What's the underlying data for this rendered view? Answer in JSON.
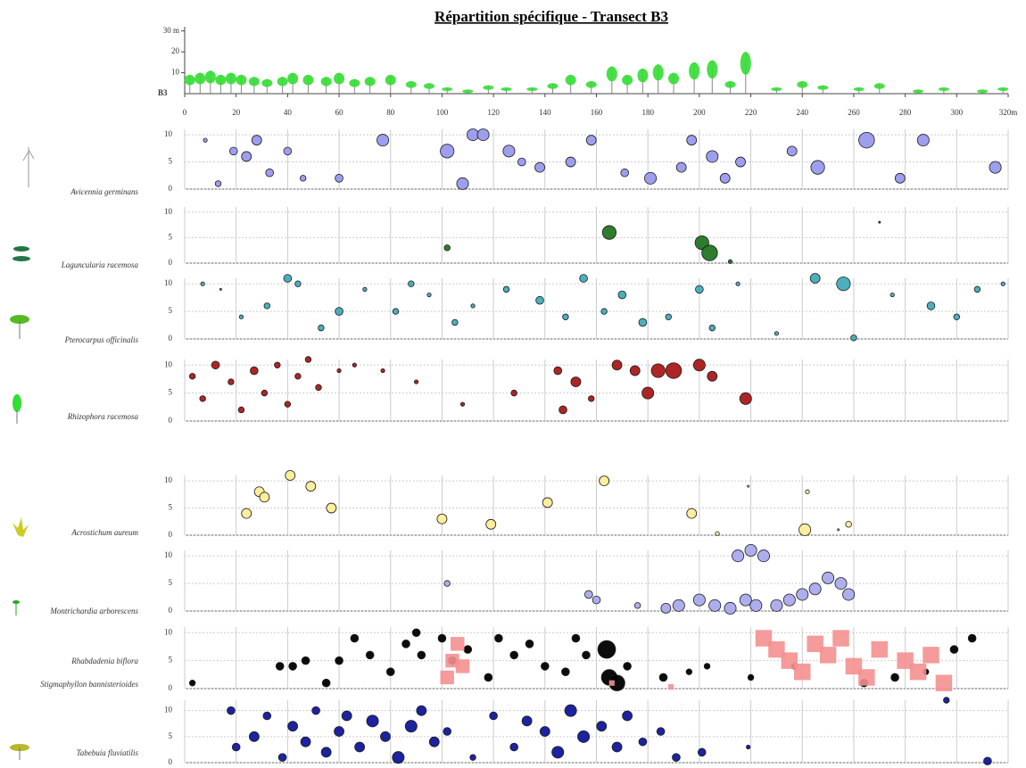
{
  "chart_data": [
    {
      "type": "profile",
      "title": "Répartition spécifique - Transect B3",
      "transect_label": "B3",
      "color": "#33dd33",
      "xlim": [
        0,
        320
      ],
      "xticks": [
        0,
        20,
        40,
        60,
        80,
        100,
        120,
        140,
        160,
        180,
        200,
        220,
        240,
        260,
        280,
        300,
        {
          "value": 320,
          "label": "320m"
        }
      ],
      "ylim": [
        0,
        32
      ],
      "yticks": [
        10,
        20,
        {
          "value": 30,
          "label": "30 m"
        }
      ],
      "x": [
        2,
        6,
        10,
        14,
        18,
        22,
        27,
        32,
        38,
        42,
        48,
        55,
        60,
        66,
        72,
        80,
        88,
        95,
        102,
        110,
        118,
        125,
        135,
        143,
        150,
        158,
        166,
        172,
        178,
        184,
        190,
        198,
        205,
        212,
        218,
        230,
        240,
        248,
        262,
        270,
        285,
        295,
        310,
        318
      ],
      "values": [
        9,
        10,
        11,
        9,
        10,
        9,
        8,
        7,
        8,
        10,
        9,
        8,
        10,
        7,
        8,
        9,
        6,
        5,
        3,
        2,
        4,
        3,
        3,
        5,
        9,
        6,
        13,
        9,
        12,
        14,
        10,
        15,
        16,
        6,
        20,
        3,
        6,
        4,
        3,
        5,
        2,
        3,
        2,
        3
      ]
    },
    {
      "type": "scatter",
      "xlim": [
        0,
        320
      ],
      "ylim": [
        0,
        11
      ],
      "yticks": [
        0,
        5,
        10
      ],
      "series": [
        {
          "name": "Avicennia germinans",
          "color": "#9999ee",
          "x": [
            8,
            13,
            19,
            24,
            28,
            33,
            40,
            46,
            60,
            77,
            102,
            108,
            112,
            116,
            126,
            131,
            138,
            150,
            158,
            171,
            181,
            193,
            197,
            205,
            210,
            216,
            236,
            246,
            265,
            278,
            287,
            315
          ],
          "values": [
            9,
            1,
            7,
            6,
            9,
            3,
            7,
            2,
            2,
            9,
            7,
            1,
            10,
            10,
            7,
            5,
            4,
            5,
            9,
            3,
            2,
            4,
            9,
            6,
            2,
            5,
            7,
            4,
            9,
            2,
            9,
            4
          ],
          "sizes": [
            2,
            3,
            4,
            5,
            5,
            4,
            4,
            3,
            4,
            6,
            7,
            6,
            6,
            6,
            6,
            4,
            5,
            5,
            5,
            4,
            6,
            5,
            5,
            6,
            5,
            5,
            5,
            7,
            8,
            5,
            6,
            6
          ]
        }
      ]
    },
    {
      "type": "scatter",
      "xlim": [
        0,
        320
      ],
      "ylim": [
        0,
        11
      ],
      "yticks": [
        0,
        5,
        10
      ],
      "series": [
        {
          "name": "Laguncularia racemosa",
          "color": "#227722",
          "x": [
            102,
            165,
            201,
            204,
            212,
            270
          ],
          "values": [
            3,
            6,
            4,
            2,
            0.3,
            8
          ],
          "sizes": [
            3,
            7,
            7,
            8,
            2,
            1
          ]
        }
      ]
    },
    {
      "type": "scatter",
      "xlim": [
        0,
        320
      ],
      "ylim": [
        0,
        11
      ],
      "yticks": [
        0,
        5,
        10
      ],
      "series": [
        {
          "name": "Pterocarpus officinalis",
          "color": "#44aabb",
          "x": [
            7,
            14,
            22,
            32,
            40,
            44,
            53,
            60,
            70,
            82,
            88,
            95,
            105,
            112,
            125,
            138,
            148,
            155,
            163,
            170,
            178,
            188,
            200,
            205,
            215,
            230,
            245,
            256,
            260,
            275,
            290,
            300,
            308,
            318
          ],
          "values": [
            10,
            9,
            4,
            6,
            11,
            10,
            2,
            5,
            9,
            5,
            10,
            8,
            3,
            6,
            9,
            7,
            4,
            11,
            5,
            8,
            3,
            4,
            9,
            2,
            10,
            1,
            11,
            10,
            0.2,
            8,
            6,
            4,
            9,
            10
          ],
          "sizes": [
            2,
            1,
            2,
            3,
            4,
            3,
            3,
            4,
            2,
            3,
            3,
            2,
            3,
            2,
            3,
            4,
            3,
            4,
            3,
            4,
            4,
            3,
            4,
            3,
            2,
            2,
            5,
            7,
            3,
            2,
            4,
            3,
            3,
            2
          ]
        }
      ]
    },
    {
      "type": "scatter",
      "xlim": [
        0,
        320
      ],
      "ylim": [
        0,
        11
      ],
      "yticks": [
        0,
        5,
        10
      ],
      "series": [
        {
          "name": "Rhizophora racemosa",
          "color": "#aa1a1a",
          "x": [
            3,
            7,
            12,
            18,
            22,
            27,
            31,
            36,
            40,
            44,
            48,
            52,
            60,
            66,
            77,
            90,
            108,
            128,
            145,
            147,
            152,
            158,
            168,
            175,
            180,
            184,
            190,
            200,
            205,
            218
          ],
          "values": [
            8,
            4,
            10,
            7,
            2,
            9,
            5,
            10,
            3,
            8,
            11,
            6,
            9,
            10,
            9,
            7,
            3,
            5,
            9,
            2,
            7,
            4,
            10,
            9,
            5,
            9,
            9,
            10,
            8,
            4
          ],
          "sizes": [
            3,
            3,
            4,
            3,
            3,
            4,
            3,
            3,
            3,
            3,
            3,
            3,
            2,
            2,
            2,
            2,
            2,
            3,
            4,
            4,
            5,
            3,
            5,
            5,
            6,
            7,
            8,
            6,
            5,
            6
          ]
        }
      ]
    },
    {
      "type": "scatter",
      "xlim": [
        0,
        320
      ],
      "ylim": [
        0,
        11
      ],
      "yticks": [
        0,
        5,
        10
      ],
      "series": [
        {
          "name": "Acrostichum aureum",
          "color": "#ffee99",
          "x": [
            24,
            29,
            31,
            41,
            49,
            57,
            100,
            119,
            141,
            163,
            197,
            207,
            219,
            241,
            242,
            254,
            258
          ],
          "values": [
            4,
            8,
            7,
            11,
            9,
            5,
            3,
            2,
            6,
            10,
            4,
            0.3,
            9,
            1,
            8,
            1,
            2
          ],
          "sizes": [
            5,
            5,
            5,
            5,
            5,
            5,
            5,
            5,
            5,
            5,
            5,
            2,
            1,
            6,
            2,
            1,
            3
          ]
        }
      ]
    },
    {
      "type": "scatter",
      "xlim": [
        0,
        320
      ],
      "ylim": [
        0,
        11
      ],
      "yticks": [
        0,
        5,
        10
      ],
      "series": [
        {
          "name": "Montrichardia arborescens",
          "color": "#aaaaee",
          "x": [
            102,
            157,
            160,
            176,
            187,
            192,
            200,
            206,
            212,
            218,
            222,
            215,
            220,
            225,
            230,
            235,
            240,
            245,
            250,
            255,
            258
          ],
          "values": [
            5,
            3,
            2,
            1,
            0.5,
            1,
            2,
            1,
            0.5,
            2,
            1,
            10,
            11,
            10,
            1,
            2,
            3,
            4,
            6,
            5,
            3
          ],
          "sizes": [
            3,
            4,
            4,
            3,
            5,
            6,
            6,
            6,
            6,
            6,
            6,
            6,
            6,
            6,
            6,
            6,
            6,
            6,
            6,
            6,
            6
          ]
        }
      ]
    },
    {
      "type": "scatter",
      "xlim": [
        0,
        320
      ],
      "ylim": [
        0,
        11
      ],
      "yticks": [
        0,
        5,
        10
      ],
      "series": [
        {
          "name": "Rhabdadenia biflora",
          "color": "#000000",
          "x": [
            3,
            37,
            42,
            47,
            55,
            60,
            66,
            72,
            80,
            86,
            90,
            92,
            100,
            104,
            110,
            118,
            122,
            128,
            134,
            140,
            148,
            152,
            156,
            164,
            165,
            168,
            172,
            186,
            196,
            203,
            220,
            237,
            264,
            276,
            288,
            299,
            306
          ],
          "values": [
            1,
            4,
            4,
            5,
            1,
            5,
            9,
            6,
            3,
            8,
            10,
            6,
            9,
            5,
            7,
            2,
            9,
            6,
            8,
            4,
            3,
            9,
            6,
            7,
            2,
            1,
            4,
            2,
            3,
            4,
            2,
            4,
            1,
            2,
            3,
            7,
            9
          ],
          "sizes": [
            3,
            4,
            4,
            4,
            4,
            4,
            4,
            4,
            4,
            4,
            4,
            4,
            4,
            4,
            4,
            4,
            4,
            4,
            4,
            4,
            4,
            4,
            4,
            9,
            8,
            8,
            4,
            4,
            3,
            3,
            3,
            3,
            4,
            4,
            3,
            4,
            4
          ]
        },
        {
          "name": "Stigmaphyllon bannisterioides",
          "color": "#f49090",
          "marker": "square",
          "x": [
            102,
            104,
            106,
            108,
            225,
            230,
            235,
            240,
            245,
            250,
            255,
            260,
            265,
            270,
            280,
            285,
            290,
            295,
            166,
            189
          ],
          "values": [
            2,
            5,
            8,
            4,
            9,
            7,
            5,
            3,
            8,
            6,
            9,
            4,
            2,
            7,
            5,
            3,
            6,
            1,
            1,
            0.3
          ],
          "sizes": [
            5,
            5,
            5,
            5,
            6,
            6,
            6,
            6,
            6,
            6,
            6,
            6,
            6,
            6,
            6,
            6,
            6,
            6,
            2,
            2
          ]
        }
      ]
    },
    {
      "type": "scatter",
      "xlim": [
        0,
        320
      ],
      "ylim": [
        0,
        12
      ],
      "yticks": [
        0,
        5,
        10
      ],
      "series": [
        {
          "name": "Tabebuia fluviatilis",
          "color": "#10189a",
          "x": [
            18,
            20,
            27,
            32,
            38,
            42,
            47,
            51,
            55,
            60,
            63,
            68,
            73,
            78,
            83,
            88,
            92,
            97,
            102,
            112,
            120,
            128,
            133,
            140,
            145,
            150,
            155,
            162,
            168,
            172,
            178,
            185,
            191,
            201,
            219,
            296,
            312
          ],
          "values": [
            10,
            3,
            5,
            9,
            1,
            7,
            4,
            10,
            2,
            6,
            9,
            3,
            8,
            5,
            1,
            7,
            10,
            4,
            6,
            1,
            9,
            3,
            8,
            6,
            2,
            10,
            5,
            7,
            3,
            9,
            4,
            6,
            1,
            2,
            3,
            12,
            0.3
          ],
          "sizes": [
            4,
            4,
            5,
            4,
            4,
            5,
            5,
            4,
            5,
            5,
            5,
            5,
            6,
            5,
            6,
            6,
            5,
            5,
            4,
            3,
            4,
            4,
            5,
            5,
            6,
            6,
            6,
            5,
            5,
            5,
            4,
            4,
            4,
            4,
            2,
            3,
            4
          ]
        }
      ]
    }
  ]
}
